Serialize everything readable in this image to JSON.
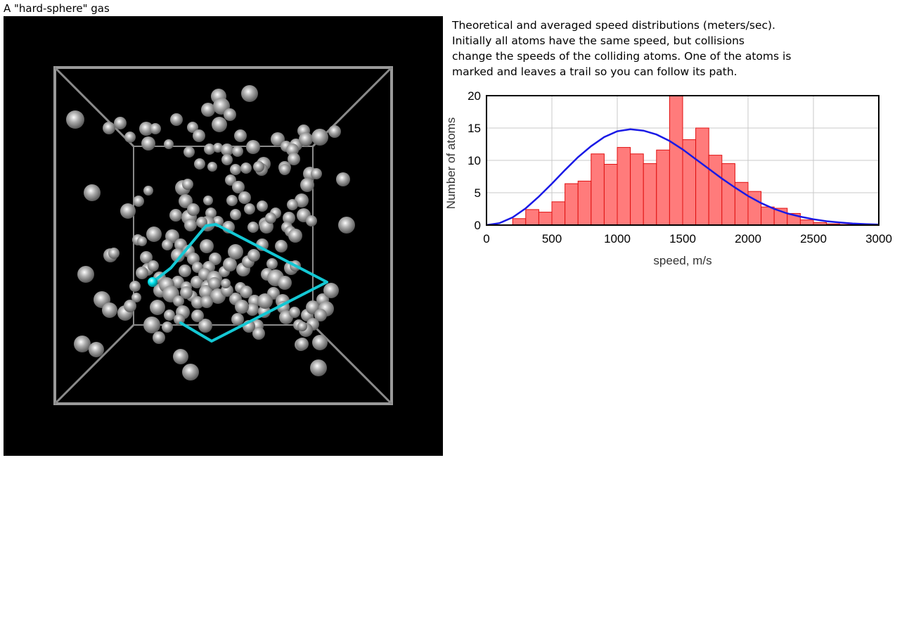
{
  "page": {
    "title": "A \"hard-sphere\" gas"
  },
  "description": {
    "lines": [
      "Theoretical and averaged speed distributions (meters/sec).",
      "Initially all atoms have the same speed, but collisions",
      "change the speeds of the colliding atoms. One of the atoms is",
      "marked and leaves a trail so you can follow its path."
    ]
  },
  "colors": {
    "scene_background": "#000000",
    "box_edge": "#9a9a9a",
    "atom": "#8a8a8a",
    "marked_atom": "#00e5ee",
    "trail": "#14c8d4",
    "histogram_fill": "#ff7b7b",
    "histogram_edge": "#e01010",
    "theory_curve": "#1a1ae6"
  },
  "chart_data": {
    "type": "bar",
    "xlabel": "speed, m/s",
    "ylabel": "Number of atoms",
    "xlim": [
      0,
      3000
    ],
    "ylim": [
      0,
      20
    ],
    "xticks": [
      "0",
      "500",
      "1000",
      "1500",
      "2000",
      "2500",
      "3000"
    ],
    "yticks": [
      "0",
      "5",
      "10",
      "15",
      "20"
    ],
    "grid": true,
    "bin_width": 100,
    "series": [
      {
        "type": "bar",
        "x": [
          200,
          300,
          400,
          500,
          600,
          700,
          800,
          900,
          1000,
          1100,
          1200,
          1300,
          1400,
          1500,
          1600,
          1700,
          1800,
          1900,
          2000,
          2100,
          2200,
          2300,
          2400,
          2500,
          2600,
          2700
        ],
        "values": [
          1.0,
          2.4,
          2.0,
          3.6,
          6.4,
          6.8,
          11.0,
          9.4,
          12.0,
          11.0,
          9.5,
          11.6,
          20.0,
          13.2,
          15.0,
          10.8,
          9.5,
          6.6,
          5.2,
          2.8,
          2.6,
          1.8,
          0.8,
          0.4,
          0.2,
          0.1
        ]
      },
      {
        "type": "line",
        "x": [
          0,
          100,
          200,
          300,
          400,
          500,
          600,
          700,
          800,
          900,
          1000,
          1100,
          1200,
          1300,
          1400,
          1500,
          1600,
          1700,
          1800,
          1900,
          2000,
          2100,
          2200,
          2300,
          2400,
          2500,
          2600,
          2700,
          2800,
          2900,
          3000
        ],
        "values": [
          0,
          0.3,
          1.2,
          2.6,
          4.4,
          6.4,
          8.5,
          10.5,
          12.2,
          13.6,
          14.5,
          14.8,
          14.6,
          14.0,
          13.0,
          11.7,
          10.2,
          8.7,
          7.2,
          5.8,
          4.5,
          3.4,
          2.5,
          1.8,
          1.3,
          0.9,
          0.6,
          0.4,
          0.25,
          0.15,
          0.08
        ]
      }
    ]
  }
}
